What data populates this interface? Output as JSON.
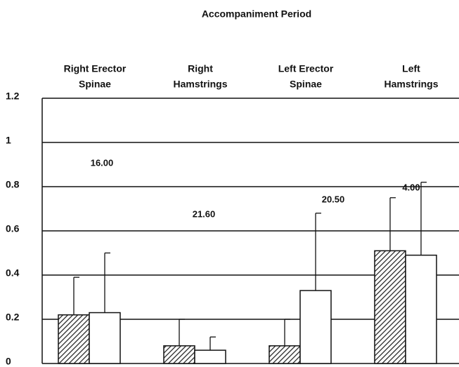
{
  "chart_data": {
    "type": "bar",
    "title": "Accompaniment Period",
    "categories": [
      [
        "Right Erector",
        "Spinae"
      ],
      [
        "Right",
        "Hamstrings"
      ],
      [
        "Left Erector",
        "Spinae"
      ],
      [
        "Left",
        "Hamstrings"
      ]
    ],
    "series": [
      {
        "color": "#222222",
        "pattern": "hatch",
        "values": [
          0.22,
          0.08,
          0.08,
          0.51
        ],
        "errors": [
          0.17,
          0.12,
          0.12,
          0.24
        ]
      },
      {
        "color": "#ffffff",
        "values": [
          0.23,
          0.06,
          0.33,
          0.49
        ],
        "errors": [
          0.27,
          0.06,
          0.35,
          0.33
        ]
      }
    ],
    "annotations": [
      "16.00",
      "21.60",
      "20.50",
      "4.00"
    ],
    "ylim": [
      0,
      1.2
    ],
    "yticks": [
      0,
      0.2,
      0.4,
      0.6,
      0.8,
      1,
      1.2
    ],
    "grid": true
  }
}
